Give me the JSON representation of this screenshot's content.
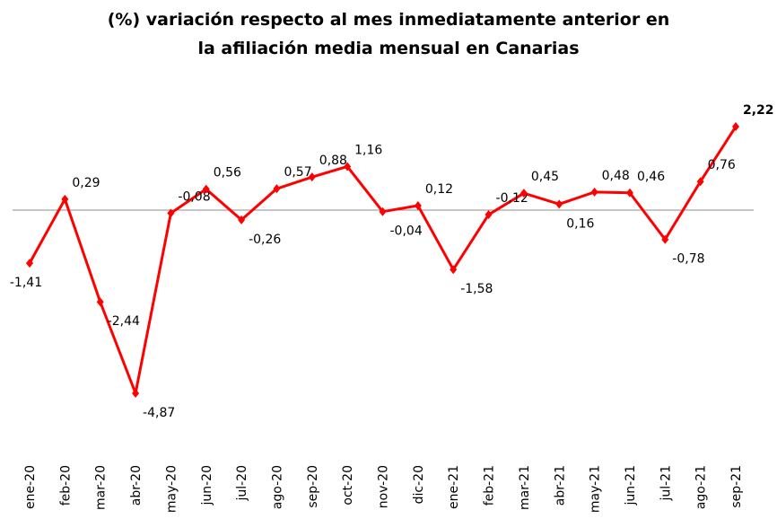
{
  "chart_data": {
    "type": "line",
    "title": [
      "(%) variación respecto al mes inmediatamente anterior en",
      "la afiliación media mensual en Canarias"
    ],
    "categories": [
      "ene-20",
      "feb-20",
      "mar-20",
      "abr-20",
      "may-20",
      "jun-20",
      "jul-20",
      "ago-20",
      "sep-20",
      "oct-20",
      "nov-20",
      "dic-20",
      "ene-21",
      "feb-21",
      "mar-21",
      "abr-21",
      "may-21",
      "jun-21",
      "jul-21",
      "ago-21",
      "sep-21"
    ],
    "series": [
      {
        "name": "variación",
        "color": "#ff0000",
        "values": [
          -1.41,
          0.29,
          -2.44,
          -4.87,
          -0.08,
          0.56,
          -0.26,
          0.57,
          0.88,
          1.16,
          -0.04,
          0.12,
          -1.58,
          -0.12,
          0.45,
          0.16,
          0.48,
          0.46,
          -0.78,
          0.76,
          2.22
        ],
        "value_labels": [
          "-1,41",
          "0,29",
          "-2,44",
          "-4,87",
          "-0,08",
          "0,56",
          "-0,26",
          "0,57",
          "0,88",
          "1,16",
          "-0,04",
          "0,12",
          "-1,58",
          "-0,12",
          "0,45",
          "0,16",
          "0,48",
          "0,46",
          "-0,78",
          "0,76",
          "2,22"
        ]
      }
    ],
    "ylim": [
      -6.35,
      3.2
    ]
  }
}
